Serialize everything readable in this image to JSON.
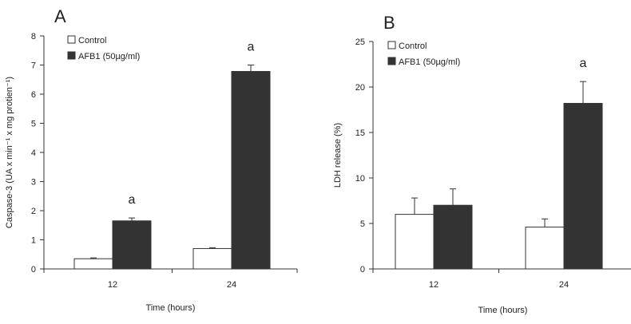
{
  "chart_data": [
    {
      "type": "bar",
      "panel_label": "A",
      "categories": [
        "12",
        "24"
      ],
      "series": [
        {
          "name": "Control",
          "values": [
            0.35,
            0.7
          ],
          "errors": [
            0.03,
            0.03
          ],
          "color": "#ffffff"
        },
        {
          "name": "AFB1 (50µg/ml)",
          "values": [
            1.65,
            6.78
          ],
          "errors": [
            0.1,
            0.22
          ],
          "color": "#333333"
        }
      ],
      "annotations": [
        {
          "text": "a",
          "category": "12"
        },
        {
          "text": "a",
          "category": "24"
        }
      ],
      "xlabel": "Time (hours)",
      "ylabel": "Caspase-3 (UA x min⁻¹ x mg protien⁻¹)",
      "ylim": [
        0,
        8
      ],
      "yticks": [
        "0",
        "1",
        "2",
        "3",
        "4",
        "5",
        "6",
        "7",
        "8"
      ],
      "grid": false,
      "legend_position": "top-left"
    },
    {
      "type": "bar",
      "panel_label": "B",
      "categories": [
        "12",
        "24"
      ],
      "series": [
        {
          "name": "Control",
          "values": [
            6.0,
            4.6
          ],
          "errors": [
            1.8,
            0.9
          ],
          "color": "#ffffff"
        },
        {
          "name": "AFB1 (50µg/ml)",
          "values": [
            7.0,
            18.2
          ],
          "errors": [
            1.8,
            2.4
          ],
          "color": "#333333"
        }
      ],
      "annotations": [
        {
          "text": "a",
          "category": "24"
        }
      ],
      "xlabel": "Time (hours)",
      "ylabel": "LDH release (%)",
      "ylim": [
        0,
        25
      ],
      "yticks": [
        "0",
        "5",
        "10",
        "15",
        "20",
        "25"
      ],
      "grid": false,
      "legend_position": "top-left"
    }
  ]
}
